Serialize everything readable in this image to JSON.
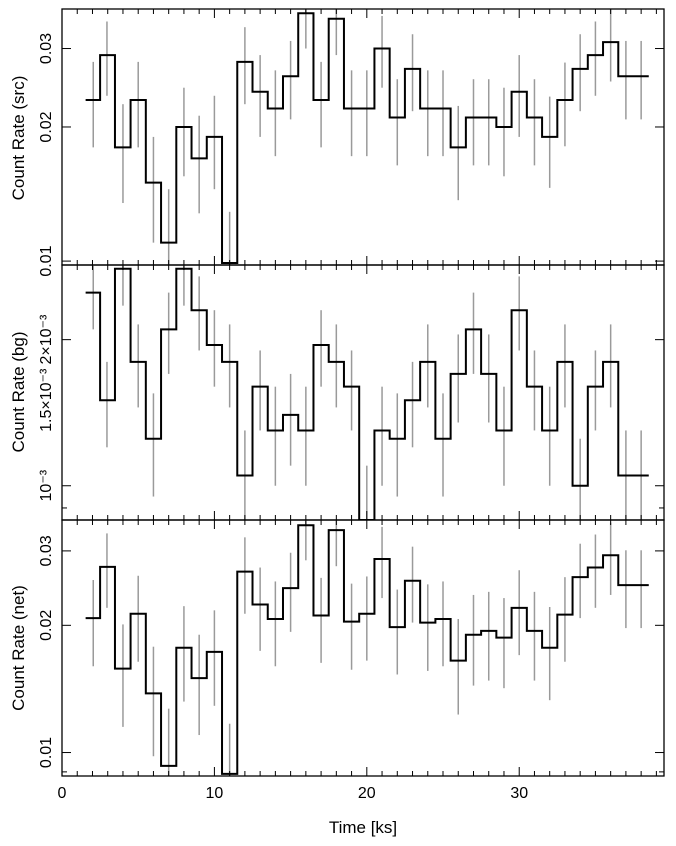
{
  "chart_data": [
    {
      "type": "line",
      "step": true,
      "title": "",
      "xlabel": "",
      "ylabel": "Count Rate (src)",
      "xlim": [
        0,
        39.5
      ],
      "ylim": [
        0.0098,
        0.0368
      ],
      "yscale": "log",
      "yticks_major": [
        0.01,
        0.02,
        0.03
      ],
      "ytick_labels": [
        "0.01",
        "0.02",
        "0.03"
      ],
      "x": [
        2.05,
        2.95,
        4.0,
        5.0,
        6.0,
        7.0,
        8.0,
        9.0,
        10.0,
        11.0,
        12.0,
        13.0,
        14.0,
        15.0,
        16.0,
        17.0,
        18.0,
        19.0,
        20.0,
        21.0,
        22.0,
        23.0,
        24.0,
        25.0,
        26.0,
        27.0,
        28.0,
        29.0,
        30.0,
        31.0,
        32.0,
        33.0,
        34.0,
        35.0,
        36.0,
        37.0,
        38.0
      ],
      "y": [
        0.023,
        0.029,
        0.018,
        0.023,
        0.015,
        0.011,
        0.02,
        0.017,
        0.019,
        0.0099,
        0.028,
        0.024,
        0.022,
        0.026,
        0.036,
        0.023,
        0.035,
        0.022,
        0.022,
        0.03,
        0.021,
        0.027,
        0.022,
        0.022,
        0.018,
        0.021,
        0.021,
        0.02,
        0.024,
        0.021,
        0.019,
        0.023,
        0.027,
        0.029,
        0.031,
        0.026,
        0.026
      ],
      "err": [
        0.005,
        0.0055,
        0.0045,
        0.005,
        0.004,
        0.0035,
        0.0045,
        0.0042,
        0.0045,
        0.003,
        0.0055,
        0.005,
        0.0048,
        0.0052,
        0.006,
        0.005,
        0.006,
        0.0048,
        0.0048,
        0.0055,
        0.0046,
        0.0053,
        0.0048,
        0.0048,
        0.0043,
        0.0046,
        0.0046,
        0.0045,
        0.005,
        0.0046,
        0.0044,
        0.0049,
        0.0053,
        0.0055,
        0.0057,
        0.0052,
        0.0052
      ]
    },
    {
      "type": "line",
      "step": true,
      "title": "",
      "xlabel": "",
      "ylabel": "Count Rate (bg)",
      "xlim": [
        0,
        39.5
      ],
      "ylim": [
        0.00085,
        0.00285
      ],
      "yscale": "log",
      "yticks_major": [
        0.001,
        0.0015,
        0.002
      ],
      "ytick_labels": [
        "10⁻³",
        "1.5×10⁻³",
        "2×10⁻³"
      ],
      "x": [
        2.05,
        2.95,
        4.0,
        5.0,
        6.0,
        7.0,
        8.0,
        9.0,
        10.0,
        11.0,
        12.0,
        13.0,
        14.0,
        15.0,
        16.0,
        17.0,
        18.0,
        19.0,
        20.0,
        21.0,
        22.0,
        23.0,
        24.0,
        25.0,
        26.0,
        27.0,
        28.0,
        29.0,
        30.0,
        31.0,
        32.0,
        33.0,
        34.0,
        35.0,
        36.0,
        37.0,
        38.0
      ],
      "y": [
        0.0025,
        0.0015,
        0.0028,
        0.0018,
        0.00125,
        0.0021,
        0.0028,
        0.0023,
        0.00195,
        0.0018,
        0.00105,
        0.0016,
        0.0013,
        0.0014,
        0.0013,
        0.00195,
        0.0018,
        0.0016,
        0.00085,
        0.0013,
        0.00125,
        0.0015,
        0.0018,
        0.00125,
        0.0017,
        0.0021,
        0.0017,
        0.0013,
        0.0023,
        0.0016,
        0.0013,
        0.0018,
        0.001,
        0.0016,
        0.0018,
        0.00105,
        0.00105
      ],
      "err": [
        0.0004,
        0.0003,
        0.00045,
        0.00035,
        0.0003,
        0.0004,
        0.00045,
        0.0004,
        0.00035,
        0.00035,
        0.00025,
        0.0003,
        0.0003,
        0.0003,
        0.0003,
        0.00035,
        0.00035,
        0.0003,
        0.00025,
        0.0003,
        0.0003,
        0.0003,
        0.00035,
        0.0003,
        0.00035,
        0.0004,
        0.00035,
        0.0003,
        0.0004,
        0.0003,
        0.0003,
        0.00035,
        0.00025,
        0.0003,
        0.00035,
        0.00025,
        0.00025
      ]
    },
    {
      "type": "line",
      "step": true,
      "title": "",
      "xlabel": "Time [ks]",
      "ylabel": "Count Rate (net)",
      "xlim": [
        0,
        39.5
      ],
      "ylim": [
        0.0088,
        0.0355
      ],
      "yscale": "log",
      "xticks_major": [
        0,
        10,
        20,
        30
      ],
      "xtick_labels": [
        "0",
        "10",
        "20",
        "30"
      ],
      "yticks_major": [
        0.01,
        0.02,
        0.03
      ],
      "ytick_labels": [
        "0.01",
        "0.02",
        "0.03"
      ],
      "x": [
        2.05,
        2.95,
        4.0,
        5.0,
        6.0,
        7.0,
        8.0,
        9.0,
        10.0,
        11.0,
        12.0,
        13.0,
        14.0,
        15.0,
        16.0,
        17.0,
        18.0,
        19.0,
        20.0,
        21.0,
        22.0,
        23.0,
        24.0,
        25.0,
        26.0,
        27.0,
        28.0,
        29.0,
        30.0,
        31.0,
        32.0,
        33.0,
        34.0,
        35.0,
        36.0,
        37.0,
        38.0
      ],
      "y": [
        0.0208,
        0.0275,
        0.0158,
        0.0213,
        0.0138,
        0.0093,
        0.0177,
        0.015,
        0.0173,
        0.0089,
        0.0268,
        0.0224,
        0.0207,
        0.0245,
        0.0345,
        0.0211,
        0.0336,
        0.0204,
        0.0213,
        0.0287,
        0.0198,
        0.0255,
        0.0203,
        0.0207,
        0.0165,
        0.019,
        0.0194,
        0.0187,
        0.022,
        0.0194,
        0.0177,
        0.0212,
        0.026,
        0.0274,
        0.0293,
        0.0249,
        0.0249
      ],
      "err": [
        0.0048,
        0.0055,
        0.0043,
        0.0049,
        0.004,
        0.0034,
        0.0045,
        0.004,
        0.0044,
        0.0028,
        0.0055,
        0.005,
        0.0047,
        0.0052,
        0.006,
        0.0048,
        0.006,
        0.0047,
        0.0048,
        0.0055,
        0.0045,
        0.0052,
        0.0047,
        0.0047,
        0.0042,
        0.0046,
        0.0046,
        0.0045,
        0.005,
        0.0046,
        0.0044,
        0.0048,
        0.0052,
        0.0054,
        0.0057,
        0.0052,
        0.0052
      ]
    }
  ]
}
